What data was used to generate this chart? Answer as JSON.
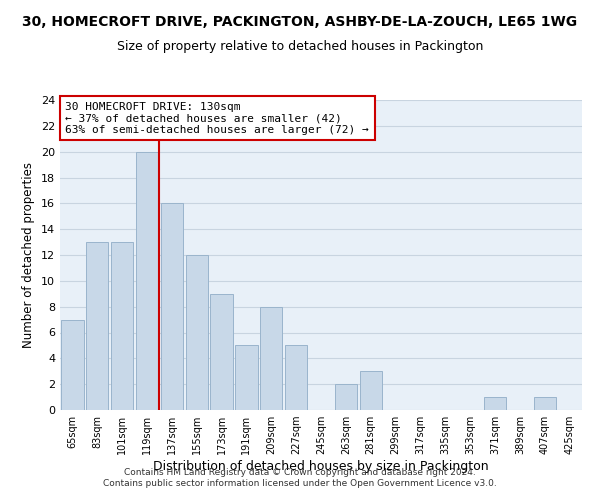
{
  "title": "30, HOMECROFT DRIVE, PACKINGTON, ASHBY-DE-LA-ZOUCH, LE65 1WG",
  "subtitle": "Size of property relative to detached houses in Packington",
  "xlabel": "Distribution of detached houses by size in Packington",
  "ylabel": "Number of detached properties",
  "bar_color": "#c8d8e8",
  "bar_edge_color": "#9ab4cc",
  "vline_color": "#cc0000",
  "annotation_title": "30 HOMECROFT DRIVE: 130sqm",
  "annotation_line1": "← 37% of detached houses are smaller (42)",
  "annotation_line2": "63% of semi-detached houses are larger (72) →",
  "annotation_box_color": "white",
  "annotation_box_edge": "#cc0000",
  "categories": [
    "65sqm",
    "83sqm",
    "101sqm",
    "119sqm",
    "137sqm",
    "155sqm",
    "173sqm",
    "191sqm",
    "209sqm",
    "227sqm",
    "245sqm",
    "263sqm",
    "281sqm",
    "299sqm",
    "317sqm",
    "335sqm",
    "353sqm",
    "371sqm",
    "389sqm",
    "407sqm",
    "425sqm"
  ],
  "values": [
    7,
    13,
    13,
    20,
    16,
    12,
    9,
    5,
    8,
    5,
    0,
    2,
    3,
    0,
    0,
    0,
    0,
    1,
    0,
    1,
    0
  ],
  "ylim": [
    0,
    24
  ],
  "yticks": [
    0,
    2,
    4,
    6,
    8,
    10,
    12,
    14,
    16,
    18,
    20,
    22,
    24
  ],
  "grid_color": "#c8d4e0",
  "background_color": "#e8f0f8",
  "footer_line1": "Contains HM Land Registry data © Crown copyright and database right 2024.",
  "footer_line2": "Contains public sector information licensed under the Open Government Licence v3.0."
}
